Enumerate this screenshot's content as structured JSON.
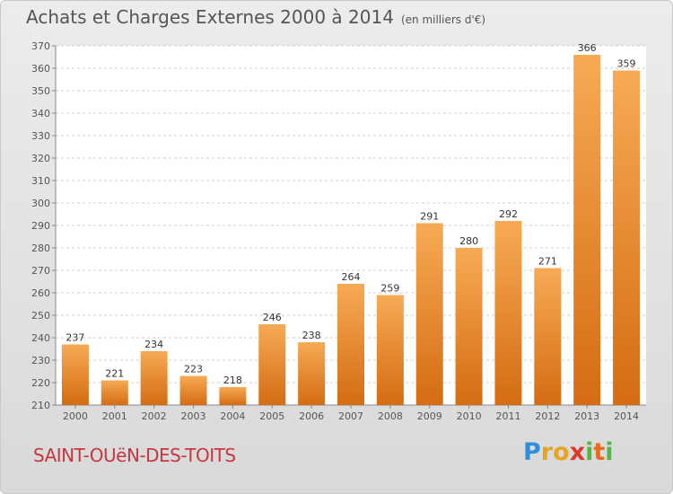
{
  "title": "Achats et Charges Externes 2000 à 2014",
  "unit": "(en milliers d'€)",
  "commune": "SAINT-OUëN-DES-TOITS",
  "logo": {
    "letters": [
      "P",
      "r",
      "o",
      "x",
      "i",
      "t",
      "i"
    ],
    "colors": [
      "#2f8fd6",
      "#e7a423",
      "#e7a423",
      "#d93a2b",
      "#59b34a",
      "#e36c1f",
      "#59b34a"
    ]
  },
  "colors": {
    "bar": "#f08a2c",
    "bar_light": "#f7aa55",
    "bar_dark": "#d46c12",
    "text": "#555555",
    "commune": "#c8373f"
  },
  "chart_data": {
    "type": "bar",
    "categories": [
      "2000",
      "2001",
      "2002",
      "2003",
      "2004",
      "2005",
      "2006",
      "2007",
      "2008",
      "2009",
      "2010",
      "2011",
      "2012",
      "2013",
      "2014"
    ],
    "values": [
      237,
      221,
      234,
      223,
      218,
      246,
      238,
      264,
      259,
      291,
      280,
      292,
      271,
      366,
      359
    ],
    "ylim": [
      210,
      370
    ],
    "yticks": [
      210,
      220,
      230,
      240,
      250,
      260,
      270,
      280,
      290,
      300,
      310,
      320,
      330,
      340,
      350,
      360,
      370
    ],
    "grid": true,
    "legend": "none"
  }
}
